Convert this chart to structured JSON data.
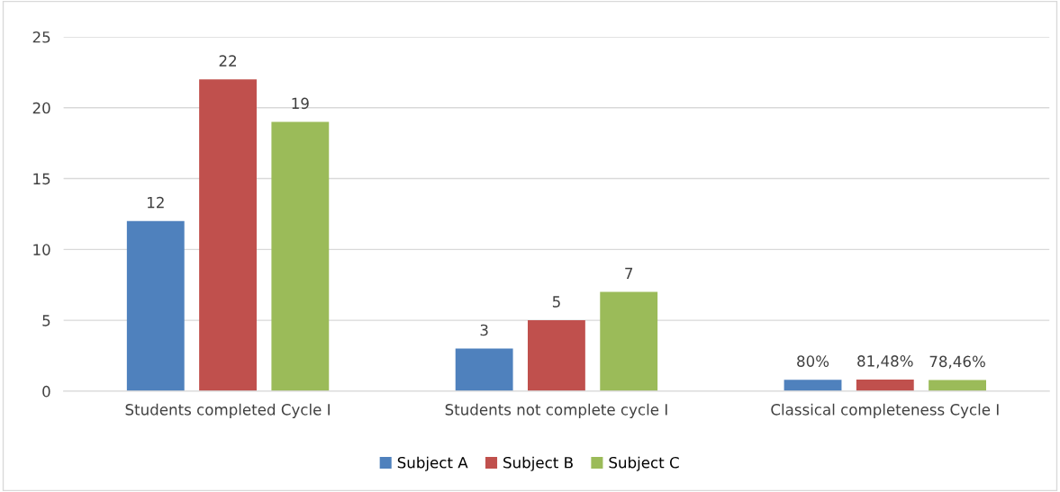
{
  "chart_data": {
    "type": "bar",
    "categories": [
      "Students completed Cycle I",
      "Students not complete cycle I",
      "Classical completeness Cycle I"
    ],
    "series": [
      {
        "name": "Subject A",
        "color": "#4f81bd",
        "values": [
          12,
          3,
          0.8
        ],
        "value_labels": [
          "12",
          "3",
          "80%"
        ]
      },
      {
        "name": "Subject B",
        "color": "#c0504d",
        "values": [
          22,
          5,
          0.8148
        ],
        "value_labels": [
          "22",
          "5",
          "81,48%"
        ]
      },
      {
        "name": "Subject C",
        "color": "#9bbb59",
        "values": [
          19,
          7,
          0.7846
        ],
        "value_labels": [
          "19",
          "7",
          "78,46%"
        ]
      }
    ],
    "ylim": [
      0,
      25
    ],
    "yticks": [
      0,
      5,
      10,
      15,
      20,
      25
    ],
    "grid": "y",
    "legend": "bottom"
  }
}
